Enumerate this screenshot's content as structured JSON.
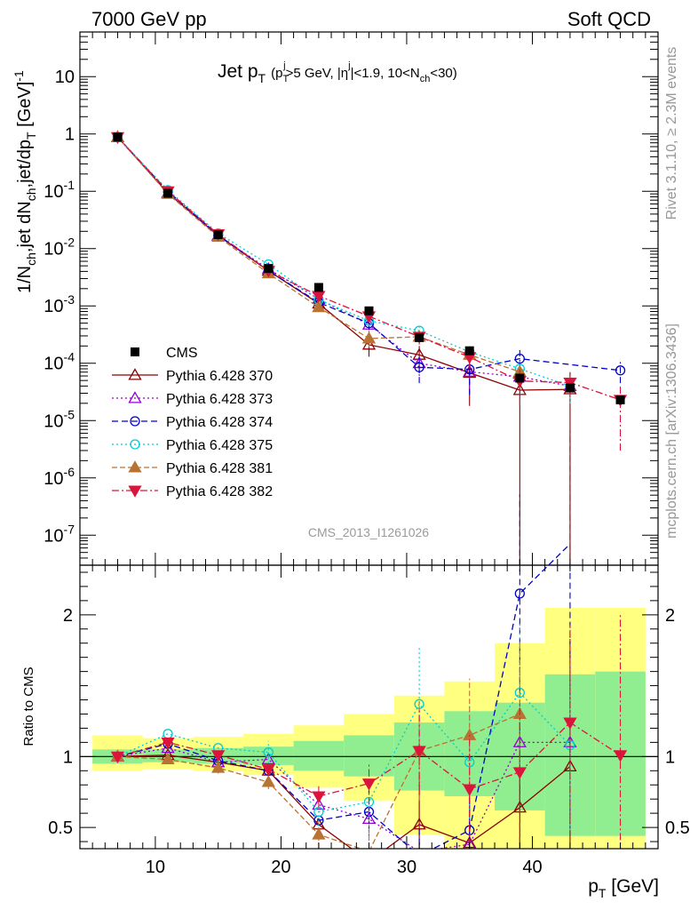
{
  "header": {
    "left": "7000 GeV pp",
    "right": "Soft QCD"
  },
  "side_labels": {
    "top": "Rivet 3.1.10, ≥ 2.3M events",
    "bottom": "mcplots.cern.ch [arXiv:1306.3436]"
  },
  "analysis_id": "CMS_2013_I1261026",
  "chart_data": [
    {
      "type": "line",
      "title_main": "Jet p",
      "title_main_sub": "T",
      "title_cut_a": "(p",
      "title_cut_a_sub": "T",
      "title_cut_a_sup": "j",
      "title_cut_b": ">5 GeV, |η",
      "title_cut_b_sup": "j",
      "title_cut_c": "|<1.9, 10<N",
      "title_cut_c_sub": "ch",
      "title_cut_d": "<30)",
      "ylabel_a": "1/N",
      "ylabel_a_sub": "ch",
      "ylabel_b": ",jet dN",
      "ylabel_b_sub": "ch",
      "ylabel_c": ",jet/dp",
      "ylabel_c_sub": "T",
      "ylabel_d": " [GeV]",
      "ylabel_d_sup": "-1",
      "yscale": "log",
      "xlim": [
        4,
        50
      ],
      "ylim": [
        3e-08,
        60
      ],
      "ytick_labels": [
        {
          "base": "10",
          "exp": "-7"
        },
        {
          "base": "10",
          "exp": "-6"
        },
        {
          "base": "10",
          "exp": "-5"
        },
        {
          "base": "10",
          "exp": "-4"
        },
        {
          "base": "10",
          "exp": "-3"
        },
        {
          "base": "10",
          "exp": "-2"
        },
        {
          "base": "10",
          "exp": "-1"
        },
        {
          "base": "1",
          "exp": ""
        },
        {
          "base": "10",
          "exp": ""
        }
      ],
      "ytick_values": [
        1e-07,
        1e-06,
        1e-05,
        0.0001,
        0.001,
        0.01,
        0.1,
        1,
        10
      ],
      "legend_position": "middle-left",
      "data": {
        "name": "CMS",
        "x": [
          7,
          11,
          15,
          19,
          23,
          27,
          31,
          35,
          39,
          43,
          47
        ],
        "y": [
          0.88,
          0.092,
          0.0175,
          0.0045,
          0.0021,
          0.00082,
          0.00028,
          0.000165,
          5.5e-05,
          3.7e-05,
          2.3e-05
        ]
      },
      "series": [
        {
          "name": "Pythia 6.428 370",
          "color": "#8b0000",
          "dash": "",
          "marker": "triangle-up-open",
          "x": [
            7,
            11,
            15,
            19,
            23,
            27,
            31,
            35,
            39,
            43
          ],
          "y": [
            0.88,
            0.093,
            0.0168,
            0.0041,
            0.0011,
            0.00021,
            0.00014,
            6.8e-05,
            3.4e-05,
            3.5e-05
          ],
          "err": [
            0,
            0,
            0,
            0,
            0,
            8e-05,
            6e-05,
            5e-05,
            3.4e-05,
            3.5e-05
          ]
        },
        {
          "name": "Pythia 6.428 373",
          "color": "#9400d3",
          "dash": "2,3",
          "marker": "triangle-up-open",
          "x": [
            7,
            11,
            15,
            19,
            23,
            27,
            31,
            35,
            39,
            43
          ],
          "y": [
            0.88,
            0.094,
            0.0168,
            0.0044,
            0.00132,
            0.00047,
            0.0001,
            7.1e-05,
            5.8e-05,
            4e-05
          ],
          "err": [
            0,
            0,
            0,
            0,
            0,
            0.00013,
            4e-05,
            4e-05,
            3e-05,
            2e-05
          ]
        },
        {
          "name": "Pythia 6.428 374",
          "color": "#0000cd",
          "dash": "7,4",
          "marker": "circle-open",
          "x": [
            7,
            11,
            15,
            19,
            23,
            27,
            31,
            35,
            39,
            47
          ],
          "y": [
            0.88,
            0.1,
            0.0172,
            0.0041,
            0.00115,
            0.0005,
            8.5e-05,
            7.8e-05,
            0.00012,
            7.5e-05
          ],
          "err": [
            0,
            0,
            0,
            0,
            0,
            0.00012,
            4e-05,
            5e-05,
            6e-05,
            3e-05
          ]
        },
        {
          "name": "Pythia 6.428 375",
          "color": "#00ced1",
          "dash": "2,3",
          "marker": "circle-open",
          "x": [
            7,
            11,
            15,
            19,
            23,
            27,
            31,
            35,
            39,
            43
          ],
          "y": [
            0.88,
            0.105,
            0.0185,
            0.0053,
            0.00128,
            0.00055,
            0.00037,
            0.000158,
            8e-05,
            4e-05
          ],
          "err": [
            0,
            0,
            0,
            0,
            0,
            0.0001,
            8e-05,
            5e-05,
            3e-05,
            2e-05
          ]
        },
        {
          "name": "Pythia 6.428 381",
          "color": "#b87333",
          "dash": "6,3",
          "marker": "triangle-up-filled",
          "x": [
            7,
            11,
            15,
            19,
            23,
            27,
            31,
            35,
            39
          ],
          "y": [
            0.88,
            0.09,
            0.016,
            0.0037,
            0.00095,
            0.00027,
            0.00029,
            0.00014,
            7.1e-05
          ],
          "err": [
            0,
            0,
            0,
            0,
            0,
            8e-05,
            8e-05,
            5e-05,
            3e-05
          ]
        },
        {
          "name": "Pythia 6.428 382",
          "color": "#dc143c",
          "dash": "8,3,2,3",
          "marker": "triangle-down-filled",
          "x": [
            7,
            11,
            15,
            19,
            23,
            27,
            31,
            35,
            39,
            43,
            47
          ],
          "y": [
            0.88,
            0.1,
            0.0178,
            0.0041,
            0.0015,
            0.00066,
            0.00029,
            0.000128,
            4.9e-05,
            4.6e-05,
            2.3e-05
          ],
          "err": [
            0,
            0,
            0,
            0,
            0,
            0.00012,
            7e-05,
            4e-05,
            3e-05,
            2e-05,
            2e-05
          ]
        }
      ]
    },
    {
      "type": "line",
      "ylabel": "Ratio to CMS",
      "xlabel_a": "p",
      "xlabel_a_sub": "T",
      "xlabel_b": " [GeV]",
      "xlim": [
        4,
        50
      ],
      "ylim": [
        0.35,
        2.35
      ],
      "xticks": [
        10,
        20,
        30,
        40
      ],
      "xtick_labels": [
        "10",
        "20",
        "30",
        "40"
      ],
      "yticks": [
        0.5,
        1,
        2
      ],
      "ytick_labels": [
        "0.5",
        "1",
        "2"
      ],
      "uncertainty_bands": {
        "x_edges": [
          5,
          9,
          13,
          17,
          21,
          25,
          29,
          33,
          37,
          41,
          45,
          49
        ],
        "inner_low": [
          0.95,
          0.96,
          0.95,
          0.94,
          0.9,
          0.86,
          0.76,
          0.72,
          0.62,
          0.44,
          0.44
        ],
        "inner_high": [
          1.05,
          1.05,
          1.06,
          1.07,
          1.11,
          1.15,
          1.24,
          1.32,
          1.38,
          1.58,
          1.6
        ],
        "outer_low": [
          0.9,
          0.91,
          0.9,
          0.87,
          0.78,
          0.69,
          0.45,
          0.35,
          0.35,
          0.35,
          0.35
        ],
        "outer_high": [
          1.15,
          1.13,
          1.14,
          1.16,
          1.22,
          1.3,
          1.43,
          1.53,
          1.8,
          2.05,
          2.05
        ]
      },
      "series": [
        {
          "name": "Pythia 6.428 370",
          "x": [
            7,
            11,
            15,
            19,
            23,
            27,
            31,
            35,
            39,
            43
          ],
          "y": [
            1.0,
            1.01,
            0.96,
            0.9,
            0.52,
            0.26,
            0.52,
            0.39,
            0.64,
            0.93
          ],
          "err": [
            0,
            0,
            0,
            0,
            0,
            0.1,
            0.35,
            0.4,
            0.6,
            0.9
          ]
        },
        {
          "name": "Pythia 6.428 373",
          "x": [
            7,
            11,
            15,
            19,
            23,
            27,
            31,
            35,
            39,
            43
          ],
          "y": [
            1.0,
            1.06,
            0.96,
            0.98,
            0.66,
            0.56,
            0.33,
            0.38,
            1.1,
            1.1
          ],
          "err": [
            0,
            0,
            0,
            0,
            0,
            0.15,
            0.2,
            0.3,
            0.5,
            0.6
          ]
        },
        {
          "name": "Pythia 6.428 374",
          "x": [
            7,
            11,
            15,
            19,
            23,
            27,
            31,
            35,
            39,
            43
          ],
          "y": [
            1.0,
            1.09,
            0.97,
            0.9,
            0.55,
            0.61,
            0.3,
            0.48,
            2.15,
            2.5
          ],
          "err": [
            0,
            0,
            0,
            0,
            0,
            0.15,
            0.2,
            0.3,
            0.7,
            0.8
          ]
        },
        {
          "name": "Pythia 6.428 375",
          "x": [
            7,
            11,
            15,
            19,
            23,
            27,
            31,
            35,
            39,
            43
          ],
          "y": [
            1.0,
            1.16,
            1.06,
            1.03,
            0.61,
            0.68,
            1.37,
            0.96,
            1.45,
            1.08
          ],
          "err": [
            0,
            0,
            0,
            0.08,
            0.1,
            0.2,
            0.4,
            0.4,
            0.5,
            0.6
          ]
        },
        {
          "name": "Pythia 6.428 381",
          "x": [
            7,
            11,
            15,
            19,
            23,
            27,
            31,
            35,
            39
          ],
          "y": [
            1.0,
            0.98,
            0.92,
            0.82,
            0.45,
            0.33,
            1.04,
            1.15,
            1.3
          ],
          "err": [
            0,
            0,
            0.04,
            0.05,
            0.1,
            0.15,
            0.35,
            0.4,
            0.5
          ]
        },
        {
          "name": "Pythia 6.428 382",
          "x": [
            7,
            11,
            15,
            19,
            23,
            27,
            31,
            35,
            39,
            43,
            47
          ],
          "y": [
            1.0,
            1.1,
            1.01,
            0.91,
            0.72,
            0.81,
            1.04,
            0.77,
            0.89,
            1.24,
            1.01
          ],
          "err": [
            0,
            0,
            0,
            0,
            0.08,
            0.15,
            0.3,
            0.4,
            0.5,
            0.7,
            1.0
          ]
        }
      ]
    }
  ]
}
